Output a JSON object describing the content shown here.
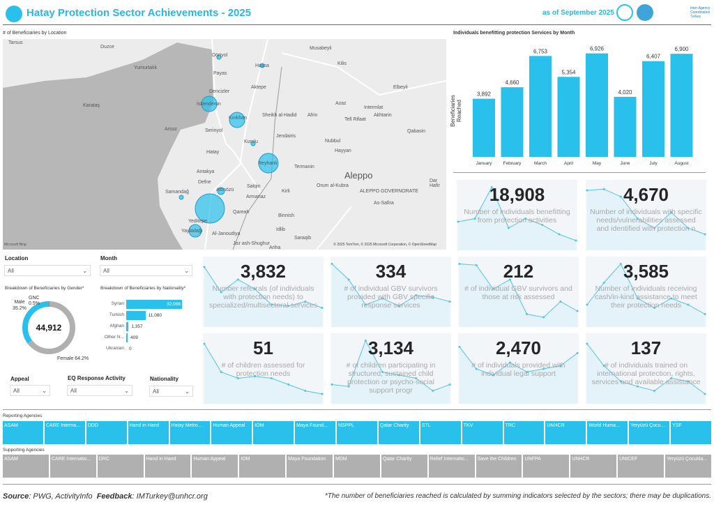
{
  "header": {
    "title": "Hatay Protection Sector Achievements - 2025",
    "date": "as of September 2025",
    "logo_text": "Inter-Agency Coordination Turkey"
  },
  "colors": {
    "accent": "#29c1ec",
    "grey": "#b0b0b0",
    "card_bg": "#f3f6f8"
  },
  "map": {
    "title": "# of Beneficiaries by Location",
    "attribution": "© 2025 TomTom, © 2025 Microsoft Corporation, © OpenStreetMap",
    "bing": "Microsoft Bing",
    "places": [
      "Tarsus",
      "Duzce",
      "Yumurtalık",
      "Karataş",
      "Dörtyol",
      "Hassa",
      "Payas",
      "Aktepe",
      "Musabeyli",
      "Kilis",
      "Elbeyli",
      "Dencizler",
      "İskenderun",
      "Kırıkhan",
      "Arsuz",
      "Serinyol",
      "Sheikh al-Hadid",
      "Afrin",
      "Azaz",
      "Intermlat",
      "Akhtarin",
      "Tell Rifaat",
      "Qabasin",
      "Jendairis",
      "Nubbul",
      "Hayyan",
      "Kumlu",
      "Hatay",
      "Reyhanlı",
      "Antakya",
      "Defne",
      "Altınözü",
      "Samandağ",
      "Salqin",
      "Armanaz",
      "Kirli",
      "Termanin",
      "Orum al-Kubra",
      "Aleppo",
      "ALEPPO GOVERNORATE",
      "As-Safira",
      "Dar Hafir",
      "Qareah",
      "Binnish",
      "Idlib",
      "Saraqib",
      "Yeditepe",
      "Yayladağı",
      "Al-Janoudiya",
      "Jisr ash-Shughur",
      "Ariha"
    ]
  },
  "monthly": {
    "title": "Individuals benefitting protection Services by Month",
    "ylabel": "Beneficiaries Reached",
    "chart_data": {
      "type": "bar",
      "categories": [
        "January",
        "February",
        "March",
        "April",
        "May",
        "June",
        "July",
        "August"
      ],
      "values": [
        3892,
        4660,
        6753,
        5354,
        6926,
        4020,
        6407,
        6900
      ],
      "labels": [
        "3,892",
        "4,660",
        "6,753",
        "5,354",
        "6,926",
        "4,020",
        "6,407",
        "6,900"
      ],
      "ylim": [
        0,
        7000
      ]
    }
  },
  "filters": {
    "location": {
      "label": "Location",
      "value": "All"
    },
    "month": {
      "label": "Month",
      "value": "All"
    },
    "appeal": {
      "label": "Appeal",
      "value": "All"
    },
    "eq": {
      "label": "EQ Response Activity",
      "value": "All"
    },
    "nationality": {
      "label": "Nationality",
      "value": "All"
    }
  },
  "gender": {
    "title": "Breakdown of Beneficiaries by Gender*",
    "total": "44,912",
    "chart_data": {
      "type": "pie",
      "categories": [
        "Male",
        "Female",
        "GNC"
      ],
      "values": [
        35.2,
        64.2,
        0.5
      ]
    },
    "male_label": "Male",
    "male_pct": "35.2%",
    "gnc_label": "GNC",
    "gnc_pct": "0.5%",
    "female_label": "Female 64.2%"
  },
  "nationality": {
    "title": "Breakdown of Beneficiaries by Nationality*",
    "chart_data": {
      "type": "bar",
      "categories": [
        "Syrian",
        "Turkish",
        "Afghan",
        "Other N...",
        "Ukranian"
      ],
      "values": [
        32066,
        11080,
        1357,
        409,
        0
      ],
      "labels": [
        "32,066",
        "11,080",
        "1,357",
        "409",
        "0"
      ]
    }
  },
  "kpis": [
    {
      "value": "18,908",
      "label": "Number of individuals benefitting from protection activities",
      "trend": [
        40,
        45,
        95,
        30,
        45,
        35,
        20,
        10
      ]
    },
    {
      "value": "4,670",
      "label": "Number of individuals with specific needs/vulnerabilities assessed and identified with protection n",
      "trend": [
        90,
        92,
        80,
        45,
        30,
        55,
        30,
        20
      ]
    },
    {
      "value": "3,832",
      "label": "Number referrals (of individuals with protection needs) to specialized/multisectoral services",
      "trend": [
        90,
        50,
        70,
        55,
        30,
        28,
        35,
        25
      ]
    },
    {
      "value": "334",
      "label": "# of individual GBV survivors provided with GBV specific response services",
      "trend": [
        95,
        70,
        30,
        40,
        28,
        45,
        42,
        35
      ]
    },
    {
      "value": "212",
      "label": "# of individual GBV survivors and those at risk assessed",
      "trend": [
        95,
        93,
        55,
        70,
        15,
        10,
        35,
        20
      ]
    },
    {
      "value": "3,585",
      "label": "Number of individuals receiving cash/in-kind assistance to meet their protection needs",
      "trend": [
        30,
        65,
        95,
        40,
        25,
        40,
        30,
        15
      ]
    },
    {
      "value": "51",
      "label": "# of children assessed for protection needs",
      "trend": [
        90,
        45,
        35,
        38,
        35,
        25,
        15,
        10
      ]
    },
    {
      "value": "3,134",
      "label": "# of children participating in structured, sustained child protection or psycho-social support progr",
      "trend": [
        25,
        22,
        95,
        45,
        40,
        35,
        15,
        25
      ]
    },
    {
      "value": "2,470",
      "label": "# of individuals provided with individual legal support",
      "trend": [
        85,
        50,
        40,
        60,
        45,
        50,
        55,
        75
      ]
    },
    {
      "value": "137",
      "label": "# of individuals trained on international protection, rights, services and available assistance",
      "trend": [
        90,
        55,
        30,
        22,
        15,
        35,
        30,
        10
      ]
    }
  ],
  "reporting": {
    "title": "Reporting Agencies",
    "items": [
      "ASAM",
      "CARE Interna...",
      "DDD",
      "Hand in Hand",
      "Hatay Metro...",
      "Human Appeal",
      "IOM",
      "Maya Found...",
      "NSPPL",
      "Qatar Charity",
      "STL",
      "TKV",
      "TRC",
      "UNHCR",
      "World Huma...",
      "Yeryüzü Çocu...",
      "YSF"
    ]
  },
  "supporting": {
    "title": "Supporting Agencies",
    "items": [
      "ASAM",
      "CARE Internatio...",
      "DRC",
      "Hand in Hand",
      "Human Appeal",
      "IOM",
      "Maya Foundation",
      "MDM",
      "Qatar Charity",
      "Relief Internatio...",
      "Save the Children",
      "UNFPA",
      "UNHCR",
      "UNICEF",
      "Yeryüzü Çocukla..."
    ]
  },
  "footer": {
    "source_label": "Source",
    "source": ": PWG, ActivityInfo",
    "feedback_label": "Feedback",
    "feedback": ": IMTurkey@unhcr.org",
    "note": "*The number of beneficiaries reached is calculated by summing indicators selected by the sectors; there may be duplications."
  }
}
